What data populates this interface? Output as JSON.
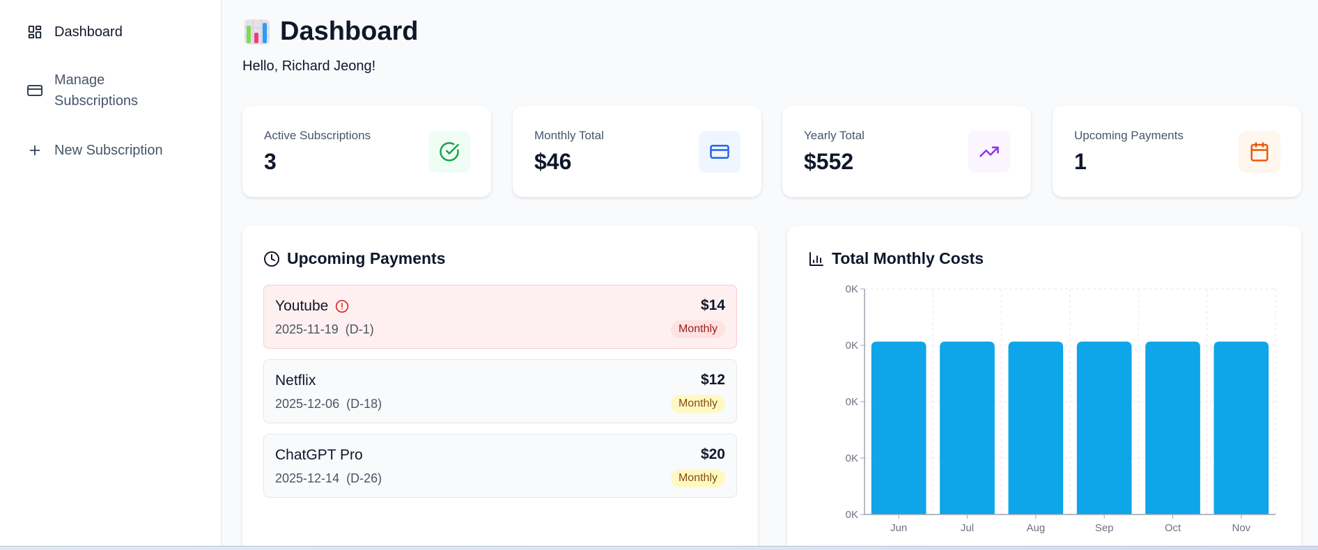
{
  "sidebar": {
    "items": [
      {
        "label": "Dashboard",
        "icon": "layout-dashboard-icon",
        "active": true
      },
      {
        "label": "Manage Subscriptions",
        "icon": "credit-card-icon",
        "active": false
      },
      {
        "label": "New Subscription",
        "icon": "plus-icon",
        "active": false
      }
    ]
  },
  "header": {
    "title": "Dashboard",
    "title_icon": "bar-chart-emoji-icon",
    "greeting": "Hello, Richard Jeong!"
  },
  "stats": [
    {
      "label": "Active Subscriptions",
      "value": "3",
      "icon": "check-circle-icon",
      "color": "#16a34a",
      "bg": "#f0fdf4"
    },
    {
      "label": "Monthly Total",
      "value": "$46",
      "icon": "credit-card-icon",
      "color": "#2563eb",
      "bg": "#eff6ff"
    },
    {
      "label": "Yearly Total",
      "value": "$552",
      "icon": "trending-up-icon",
      "color": "#9333ea",
      "bg": "#faf5ff"
    },
    {
      "label": "Upcoming Payments",
      "value": "1",
      "icon": "calendar-icon",
      "color": "#ea580c",
      "bg": "#fff7ed"
    }
  ],
  "upcoming": {
    "title": "Upcoming Payments",
    "icon": "clock-icon",
    "items": [
      {
        "name": "Youtube",
        "date": "2025-11-19",
        "dday": "(D-1)",
        "amount": "$14",
        "cycle": "Monthly",
        "urgent": true,
        "alert_icon": "alert-circle-icon"
      },
      {
        "name": "Netflix",
        "date": "2025-12-06",
        "dday": "(D-18)",
        "amount": "$12",
        "cycle": "Monthly",
        "urgent": false
      },
      {
        "name": "ChatGPT Pro",
        "date": "2025-12-14",
        "dday": "(D-26)",
        "amount": "$20",
        "cycle": "Monthly",
        "urgent": false
      }
    ]
  },
  "costs_panel": {
    "title": "Total Monthly Costs",
    "icon": "bar-chart-icon"
  },
  "chart_data": {
    "type": "bar",
    "title": "Total Monthly Costs",
    "categories": [
      "Jun",
      "Jul",
      "Aug",
      "Sep",
      "Oct",
      "Nov"
    ],
    "values": [
      46,
      46,
      46,
      46,
      46,
      46
    ],
    "xlabel": "",
    "ylabel": "",
    "y_tick_labels": [
      "0K",
      "0K",
      "0K",
      "0K",
      "0K"
    ],
    "ylim": [
      0,
      60
    ],
    "grid": true,
    "bar_color": "#0ea5e9",
    "legend": null
  }
}
